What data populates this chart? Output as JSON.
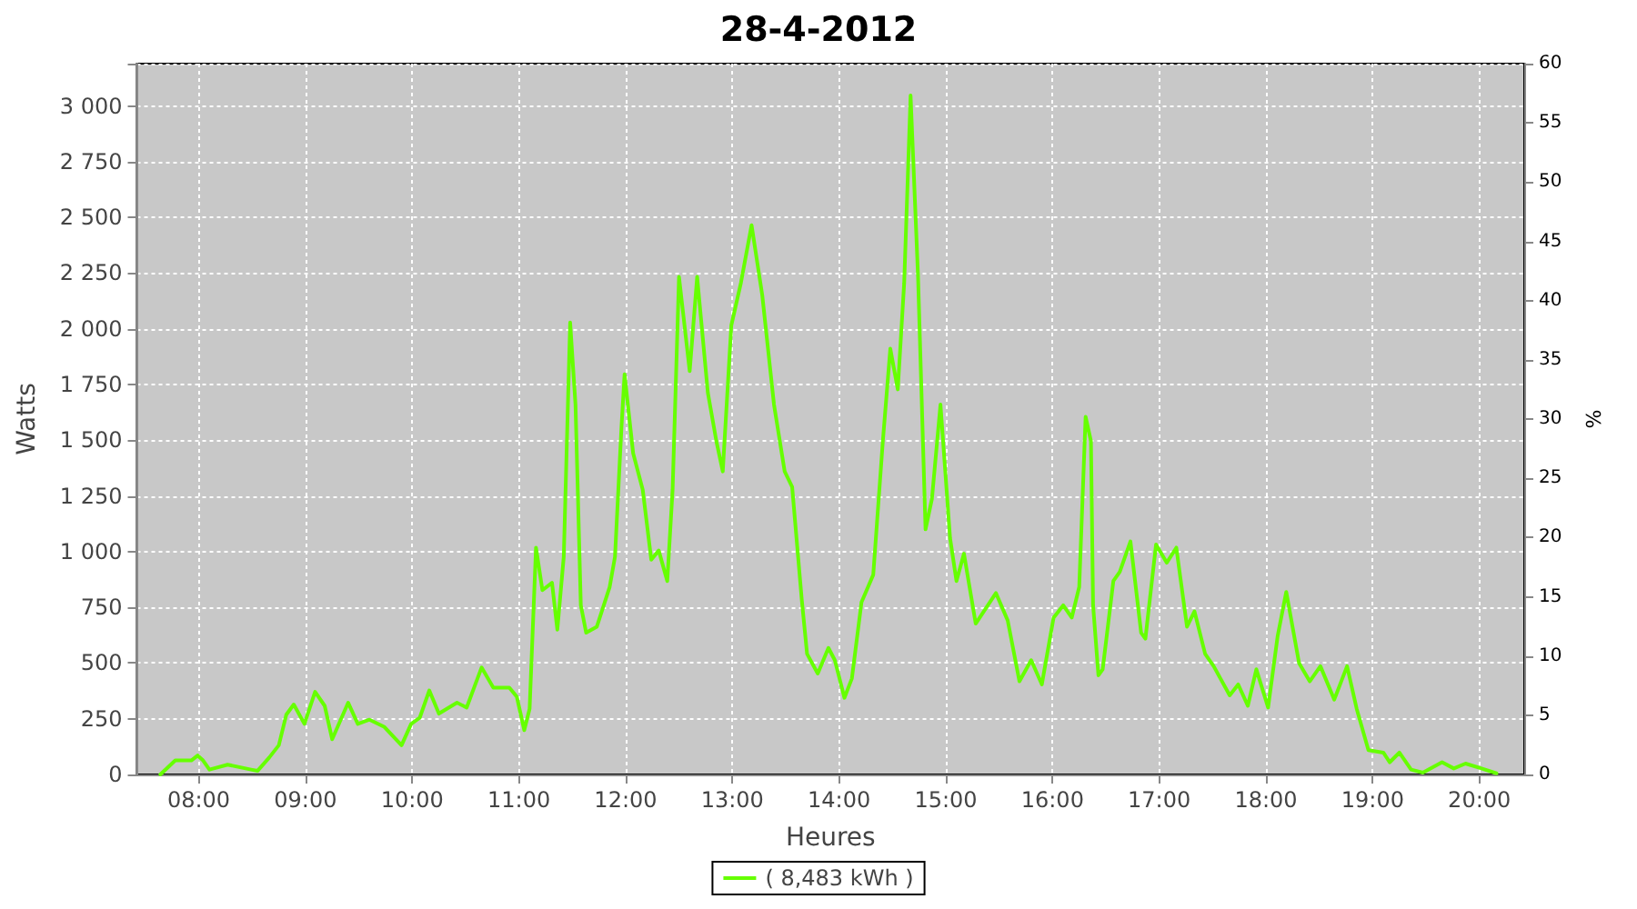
{
  "chart_data": {
    "type": "line",
    "title": "28-4-2012",
    "xlabel": "Heures",
    "ylabel": "Watts",
    "y2label": "%",
    "xlim": [
      7.42,
      20.42
    ],
    "xticks": [
      {
        "value": 8,
        "label": "08:00"
      },
      {
        "value": 9,
        "label": "09:00"
      },
      {
        "value": 10,
        "label": "10:00"
      },
      {
        "value": 11,
        "label": "11:00"
      },
      {
        "value": 12,
        "label": "12:00"
      },
      {
        "value": 13,
        "label": "13:00"
      },
      {
        "value": 14,
        "label": "14:00"
      },
      {
        "value": 15,
        "label": "15:00"
      },
      {
        "value": 16,
        "label": "16:00"
      },
      {
        "value": 17,
        "label": "17:00"
      },
      {
        "value": 18,
        "label": "18:00"
      },
      {
        "value": 19,
        "label": "19:00"
      },
      {
        "value": 20,
        "label": "20:00"
      }
    ],
    "ylim": [
      0,
      3190
    ],
    "yticks": [
      0,
      250,
      500,
      750,
      {
        "value": 1000,
        "label": "1 000"
      },
      {
        "value": 1250,
        "label": "1 250"
      },
      {
        "value": 1500,
        "label": "1 500"
      },
      {
        "value": 1750,
        "label": "1 750"
      },
      {
        "value": 2000,
        "label": "2 000"
      },
      {
        "value": 2250,
        "label": "2 250"
      },
      {
        "value": 2500,
        "label": "2 500"
      },
      {
        "value": 2750,
        "label": "2 750"
      },
      {
        "value": 3000,
        "label": "3 000"
      }
    ],
    "y2lim": [
      0,
      60
    ],
    "y2ticks": [
      0,
      5,
      10,
      15,
      20,
      25,
      30,
      35,
      40,
      45,
      50,
      55,
      60
    ],
    "grid": true,
    "legend": "bottom",
    "marker": "none",
    "line_style": "solid",
    "series": [
      {
        "name": "( 8,483 kWh )",
        "color": "#66ff00",
        "x": [
          7.64,
          7.78,
          7.93,
          7.99,
          8.04,
          8.1,
          8.27,
          8.49,
          8.55,
          8.66,
          8.75,
          8.82,
          8.89,
          8.99,
          9.09,
          9.18,
          9.25,
          9.4,
          9.49,
          9.6,
          9.74,
          9.9,
          9.99,
          10.07,
          10.16,
          10.25,
          10.42,
          10.51,
          10.65,
          10.76,
          10.91,
          10.98,
          11.05,
          11.1,
          11.16,
          11.22,
          11.31,
          11.36,
          11.42,
          11.48,
          11.53,
          11.58,
          11.63,
          11.73,
          11.85,
          11.9,
          11.96,
          11.99,
          12.07,
          12.16,
          12.24,
          12.31,
          12.39,
          12.44,
          12.5,
          12.6,
          12.67,
          12.77,
          12.85,
          12.91,
          12.99,
          13.08,
          13.18,
          13.28,
          13.39,
          13.49,
          13.56,
          13.65,
          13.7,
          13.8,
          13.9,
          13.96,
          14.05,
          14.12,
          14.21,
          14.32,
          14.41,
          14.48,
          14.55,
          14.61,
          14.67,
          14.74,
          14.81,
          14.87,
          14.95,
          15.04,
          15.1,
          15.17,
          15.28,
          15.47,
          15.58,
          15.69,
          15.8,
          15.9,
          16.01,
          16.1,
          16.18,
          16.25,
          16.31,
          16.36,
          16.38,
          16.43,
          16.47,
          16.57,
          16.63,
          16.73,
          16.83,
          16.87,
          16.97,
          17.07,
          17.16,
          17.26,
          17.33,
          17.43,
          17.51,
          17.66,
          17.74,
          17.83,
          17.91,
          18.02,
          18.11,
          18.19,
          18.31,
          18.41,
          18.51,
          18.64,
          18.76,
          18.85,
          18.96,
          19.1,
          19.16,
          19.25,
          19.36,
          19.47,
          19.65,
          19.76,
          19.87,
          20.02,
          20.16
        ],
        "values": [
          0,
          63,
          63,
          85,
          63,
          22,
          44,
          22,
          16,
          76,
          131,
          268,
          314,
          227,
          371,
          308,
          158,
          322,
          227,
          246,
          213,
          131,
          227,
          254,
          377,
          273,
          322,
          300,
          480,
          390,
          390,
          349,
          199,
          295,
          1018,
          827,
          860,
          650,
          977,
          2028,
          1660,
          759,
          636,
          663,
          841,
          977,
          1551,
          1796,
          1442,
          1278,
          964,
          1005,
          868,
          1278,
          2233,
          1810,
          2233,
          1714,
          1496,
          1360,
          2015,
          2206,
          2465,
          2151,
          1660,
          1360,
          1291,
          786,
          541,
          453,
          568,
          513,
          344,
          431,
          773,
          896,
          1496,
          1911,
          1728,
          2206,
          3047,
          2233,
          1100,
          1237,
          1660,
          1060,
          868,
          991,
          677,
          814,
          691,
          418,
          513,
          404,
          704,
          759,
          704,
          841,
          1605,
          1496,
          759,
          445,
          472,
          868,
          909,
          1046,
          636,
          609,
          1032,
          950,
          1018,
          663,
          732,
          541,
          486,
          355,
          404,
          308,
          472,
          300,
          623,
          819,
          500,
          418,
          486,
          336,
          486,
          295,
          109,
          98,
          55,
          98,
          22,
          8,
          55,
          27,
          49,
          27,
          5
        ]
      }
    ]
  }
}
